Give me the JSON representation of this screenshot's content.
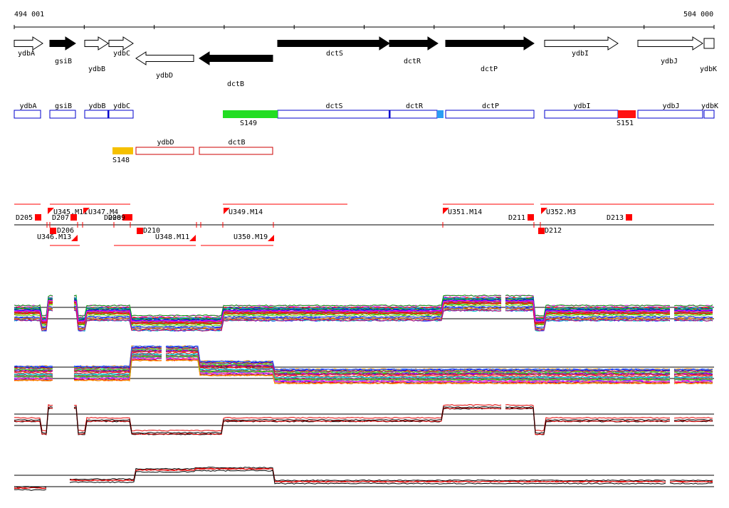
{
  "coords": {
    "start": "494 001",
    "end": "504 000"
  },
  "genes": [
    {
      "name": "ydbA",
      "dir": "+",
      "label_row": 1,
      "color": "#ffffff"
    },
    {
      "name": "gsiB",
      "dir": "+",
      "label_row": 1,
      "color": "#000000"
    },
    {
      "name": "ydbB",
      "dir": "+",
      "label_row": 2,
      "color": "#ffffff"
    },
    {
      "name": "ydbC",
      "dir": "+",
      "label_row": 1,
      "color": "#ffffff"
    },
    {
      "name": "ydbD",
      "dir": "-",
      "label_row": 3,
      "color": "#ffffff"
    },
    {
      "name": "dctB",
      "dir": "-",
      "label_row": 4,
      "color": "#000000"
    },
    {
      "name": "dctS",
      "dir": "+",
      "label_row": 1,
      "color": "#000000"
    },
    {
      "name": "dctR",
      "dir": "+",
      "label_row": 2,
      "color": "#000000"
    },
    {
      "name": "dctP",
      "dir": "+",
      "label_row": 3,
      "color": "#000000"
    },
    {
      "name": "ydbI",
      "dir": "+",
      "label_row": 1,
      "color": "#ffffff"
    },
    {
      "name": "ydbJ",
      "dir": "+",
      "label_row": 2,
      "color": "#ffffff"
    },
    {
      "name": "ydbK",
      "dir": "+",
      "label_row": 3,
      "color": "#ffffff"
    }
  ],
  "transcripts_forward": [
    {
      "name": "ydbA",
      "color": "#0000cc"
    },
    {
      "name": "gsiB",
      "color": "#0000cc"
    },
    {
      "name": "ydbB",
      "color": "#0000cc"
    },
    {
      "name": "ydbC",
      "color": "#0000cc"
    },
    {
      "name": "dctS",
      "color": "#0000cc"
    },
    {
      "name": "dctR",
      "color": "#0000cc"
    },
    {
      "name": "dctP",
      "color": "#0000cc"
    },
    {
      "name": "ydbI",
      "color": "#0000cc"
    },
    {
      "name": "ydbJ",
      "color": "#0000cc"
    },
    {
      "name": "ydbK",
      "color": "#0000cc"
    }
  ],
  "transcripts_reverse": [
    {
      "name": "ydbD",
      "color": "#cc0000"
    },
    {
      "name": "dctB",
      "color": "#cc0000"
    }
  ],
  "segments": [
    {
      "name": "S149",
      "color": "#22dd22"
    },
    {
      "name": "S151",
      "color": "#ff1111"
    },
    {
      "name": "S148",
      "color": "#f5c000"
    }
  ],
  "upshifts": [
    "U345.M11",
    "U347.M4",
    "U349.M14",
    "U351.M14",
    "U352.M3",
    "U346.M13",
    "U348.M11",
    "U350.M19"
  ],
  "downshifts": [
    "D205",
    "D207",
    "D208",
    "D209",
    "D206",
    "D210",
    "D211",
    "D212",
    "D213"
  ],
  "marker_color": "#ff0000",
  "tracks": [
    {
      "name": "forward-expression-all"
    },
    {
      "name": "reverse-expression-all"
    },
    {
      "name": "forward-expression-selected"
    },
    {
      "name": "reverse-expression-selected"
    }
  ]
}
